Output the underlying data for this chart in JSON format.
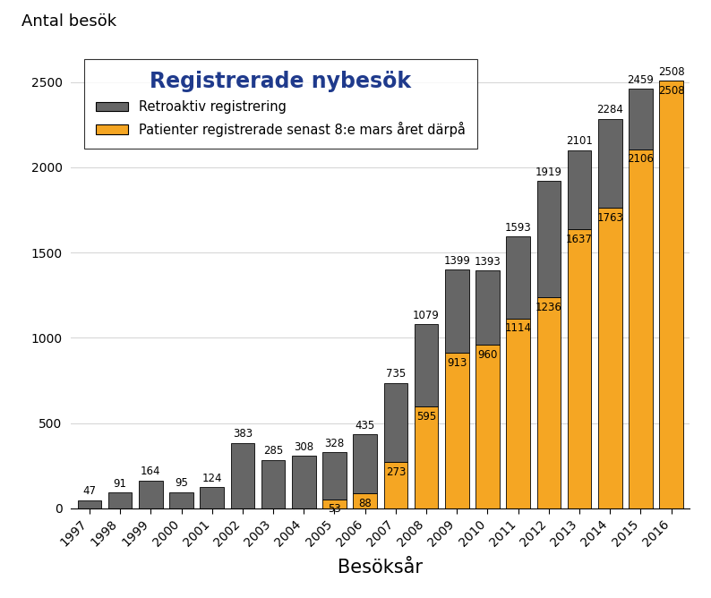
{
  "years": [
    "1997",
    "1998",
    "1999",
    "2000",
    "2001",
    "2002",
    "2003",
    "2004",
    "2005",
    "2006",
    "2007",
    "2008",
    "2009",
    "2010",
    "2011",
    "2012",
    "2013",
    "2014",
    "2015",
    "2016"
  ],
  "gray_totals": [
    47,
    91,
    164,
    95,
    124,
    383,
    285,
    308,
    328,
    435,
    735,
    1079,
    1399,
    1393,
    1593,
    1919,
    2101,
    2284,
    2459,
    2508
  ],
  "orange_values": [
    0,
    0,
    0,
    0,
    0,
    0,
    0,
    0,
    53,
    88,
    273,
    595,
    913,
    960,
    1114,
    1236,
    1637,
    1763,
    2106,
    2508
  ],
  "gray_color": "#666666",
  "orange_color": "#F5A623",
  "legend_title": "Registrerade nybesök",
  "ylabel": "Antal besök",
  "xlabel": "Besöksår",
  "legend_gray": "Retroaktiv registrering",
  "legend_orange": "Patienter registrerade senast 8:e mars året därpå",
  "ylim": [
    0,
    2700
  ],
  "yticks": [
    0,
    500,
    1000,
    1500,
    2000,
    2500
  ],
  "background_color": "#ffffff",
  "title_color": "#1F3A8C",
  "legend_title_fontsize": 17,
  "ylabel_fontsize": 13,
  "xlabel_fontsize": 15,
  "label_fontsize": 8.5,
  "tick_fontsize": 10,
  "legend_fontsize": 10.5
}
